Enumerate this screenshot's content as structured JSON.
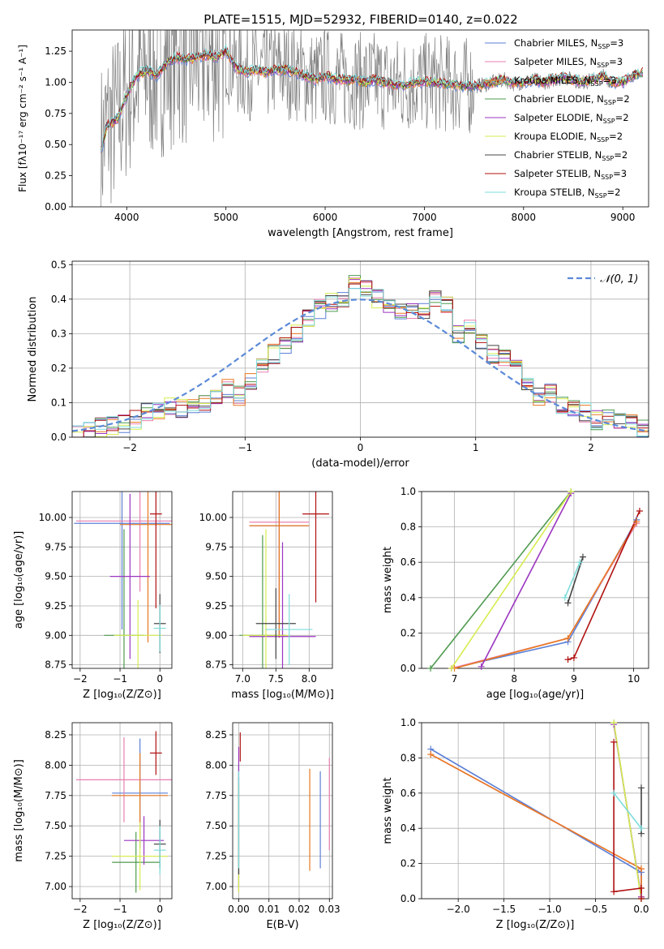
{
  "figure_title": "PLATE=1515, MJD=52932, FIBERID=0140, z=0.022",
  "colors": {
    "Chabrier MILES": "#5b7fd6",
    "Salpeter MILES": "#e87fb0",
    "Kroupa MILES": "#e87820",
    "Chabrier ELODIE": "#4f9a4f",
    "Salpeter ELODIE": "#9c35c0",
    "Kroupa ELODIE": "#d7ec50",
    "Chabrier STELIB": "#444444",
    "Salpeter STELIB": "#b01010",
    "Kroupa STELIB": "#7fdcdc",
    "data": "#808080",
    "normal": "#5b8ad8"
  },
  "chart_data": [
    {
      "id": "spectrum",
      "type": "line",
      "title": "PLATE=1515, MJD=52932, FIBERID=0140, z=0.022",
      "xlabel": "wavelength [Angstrom, rest frame]",
      "ylabel": "Flux [fλ10⁻¹⁷ erg cm⁻² s⁻¹ A⁻¹]",
      "xlim": [
        3450,
        9260
      ],
      "ylim": [
        0,
        1.42
      ],
      "xticks": [
        4000,
        5000,
        6000,
        7000,
        8000,
        9000
      ],
      "yticks": [
        0.0,
        0.25,
        0.5,
        0.75,
        1.0,
        1.25
      ],
      "legend": [
        "Chabrier MILES, N_SSP=3",
        "Salpeter MILES, N_SSP=3",
        "Kroupa MILES, N_SSP=3",
        "Chabrier ELODIE, N_SSP=2",
        "Salpeter ELODIE, N_SSP=2",
        "Kroupa ELODIE, N_SSP=2",
        "Chabrier STELIB, N_SSP=2",
        "Salpeter STELIB, N_SSP=3",
        "Kroupa STELIB, N_SSP=2"
      ],
      "legend_placement": "upper right",
      "model_continuum": {
        "x": [
          3740,
          3800,
          3900,
          4000,
          4100,
          4200,
          4300,
          4400,
          4500,
          4600,
          4700,
          4800,
          4900,
          5000,
          5100,
          5200,
          5300,
          5400,
          5500,
          5600,
          5700,
          5800,
          5900,
          6000,
          6100,
          6200,
          6300,
          6400,
          6500,
          6600,
          6700,
          6800,
          6900,
          7000,
          7100,
          7200,
          7300,
          7400,
          7500,
          7600,
          7700,
          7800,
          7900,
          8000,
          8100,
          8200,
          8300,
          8400,
          8500,
          8600,
          8700,
          8800,
          8900,
          9000,
          9100,
          9200
        ],
        "y": [
          0.45,
          0.65,
          0.7,
          0.9,
          1.05,
          1.1,
          1.05,
          1.15,
          1.2,
          1.18,
          1.2,
          1.22,
          1.2,
          1.25,
          1.12,
          1.08,
          1.1,
          1.08,
          1.1,
          1.1,
          1.08,
          1.05,
          1.02,
          1.05,
          1.03,
          1.02,
          1.02,
          1.0,
          1.02,
          1.0,
          0.98,
          0.98,
          1.0,
          1.0,
          1.0,
          0.99,
          0.98,
          0.97,
          0.97,
          0.98,
          1.0,
          1.02,
          0.99,
          1.0,
          1.02,
          1.0,
          1.02,
          1.04,
          1.02,
          1.0,
          1.02,
          1.05,
          1.0,
          1.0,
          1.05,
          1.08
        ]
      }
    },
    {
      "id": "residuals",
      "type": "histogram",
      "xlabel": "(data-model)/error",
      "ylabel": "Normed distribution",
      "xlim": [
        -2.5,
        2.5
      ],
      "ylim": [
        0,
        0.51
      ],
      "xticks": [
        -2,
        -1,
        0,
        1,
        2
      ],
      "yticks": [
        0.0,
        0.1,
        0.2,
        0.3,
        0.4,
        0.5
      ],
      "legend": [
        "𝒩(0, 1)"
      ],
      "legend_placement": "upper right",
      "bin_width": 0.1,
      "bin_start": -2.5,
      "reference_density": [
        0.02,
        0.02,
        0.03,
        0.03,
        0.04,
        0.05,
        0.07,
        0.08,
        0.09,
        0.08,
        0.09,
        0.1,
        0.12,
        0.14,
        0.12,
        0.16,
        0.2,
        0.24,
        0.26,
        0.3,
        0.34,
        0.37,
        0.39,
        0.4,
        0.45,
        0.43,
        0.4,
        0.38,
        0.37,
        0.36,
        0.37,
        0.4,
        0.38,
        0.3,
        0.31,
        0.28,
        0.24,
        0.23,
        0.2,
        0.15,
        0.12,
        0.13,
        0.09,
        0.09,
        0.07,
        0.05,
        0.05,
        0.04,
        0.04,
        0.03
      ]
    },
    {
      "id": "age_vs_Z",
      "type": "errorbar",
      "xlabel": "Z [log₁₀(Z/Z⊙)]",
      "ylabel": "age  [log₁₀(age/yr)]",
      "xlim": [
        -2.2,
        0.3
      ],
      "ylim": [
        8.72,
        10.22
      ],
      "xticks": [
        -2,
        -1,
        0
      ],
      "yticks": [
        8.75,
        9.0,
        9.25,
        9.5,
        9.75,
        10.0
      ],
      "points": [
        {
          "model": "Chabrier MILES",
          "x": -0.95,
          "y": 9.95,
          "xerr": 1.2,
          "yerr": 0.9
        },
        {
          "model": "Salpeter MILES",
          "x": -0.5,
          "y": 9.97,
          "xerr": 1.6,
          "yerr": 0.6
        },
        {
          "model": "Kroupa MILES",
          "x": -0.3,
          "y": 9.94,
          "xerr": 0.7,
          "yerr": 1.0
        },
        {
          "model": "Chabrier ELODIE",
          "x": -0.9,
          "y": 9.0,
          "xerr": 0.5,
          "yerr": 0.9
        },
        {
          "model": "Salpeter ELODIE",
          "x": -0.75,
          "y": 9.5,
          "xerr": 0.5,
          "yerr": 0.7
        },
        {
          "model": "Kroupa ELODIE",
          "x": -0.55,
          "y": 9.0,
          "xerr": 0.6,
          "yerr": 0.3
        },
        {
          "model": "Chabrier STELIB",
          "x": 0.0,
          "y": 9.1,
          "xerr": 0.15,
          "yerr": 0.25
        },
        {
          "model": "Salpeter STELIB",
          "x": -0.1,
          "y": 10.03,
          "xerr": 0.15,
          "yerr": 0.8
        },
        {
          "model": "Kroupa STELIB",
          "x": 0.0,
          "y": 9.06,
          "xerr": 0.15,
          "yerr": 0.2
        }
      ]
    },
    {
      "id": "age_vs_mass",
      "type": "errorbar",
      "xlabel": "mass [log₁₀(M/M⊙)]",
      "ylabel": "",
      "xlim": [
        6.85,
        8.35
      ],
      "ylim": [
        8.72,
        10.22
      ],
      "xticks": [
        7.0,
        7.5,
        8.0
      ],
      "yticks": [
        8.75,
        9.0,
        9.25,
        9.5,
        9.75,
        10.0
      ],
      "points": [
        {
          "model": "Chabrier MILES",
          "x": 7.55,
          "y": 9.93,
          "xerr": 0.45,
          "yerr": 0.95
        },
        {
          "model": "Salpeter MILES",
          "x": 7.55,
          "y": 9.96,
          "xerr": 0.45,
          "yerr": 0.95
        },
        {
          "model": "Kroupa MILES",
          "x": 7.55,
          "y": 9.93,
          "xerr": 0.45,
          "yerr": 0.95
        },
        {
          "model": "Chabrier ELODIE",
          "x": 7.3,
          "y": 9.0,
          "xerr": 0.35,
          "yerr": 0.85
        },
        {
          "model": "Salpeter ELODIE",
          "x": 7.6,
          "y": 8.99,
          "xerr": 0.5,
          "yerr": 0.8
        },
        {
          "model": "Kroupa ELODIE",
          "x": 7.35,
          "y": 9.0,
          "xerr": 0.35,
          "yerr": 0.9
        },
        {
          "model": "Chabrier STELIB",
          "x": 7.5,
          "y": 9.1,
          "xerr": 0.3,
          "yerr": 0.3
        },
        {
          "model": "Salpeter STELIB",
          "x": 8.1,
          "y": 10.03,
          "xerr": 0.2,
          "yerr": 0.75
        },
        {
          "model": "Kroupa STELIB",
          "x": 7.7,
          "y": 9.05,
          "xerr": 0.35,
          "yerr": 0.3
        }
      ]
    },
    {
      "id": "mass_weight_vs_age",
      "type": "line",
      "xlabel": "age  [log₁₀(age/yr)]",
      "ylabel": "mass weight",
      "xlim": [
        6.45,
        10.25
      ],
      "ylim": [
        0,
        1.0
      ],
      "xticks": [
        7,
        8,
        9,
        10
      ],
      "yticks": [
        0.0,
        0.2,
        0.4,
        0.6,
        0.8,
        1.0
      ],
      "series": [
        {
          "name": "Chabrier MILES",
          "x": [
            6.95,
            8.9,
            10.05
          ],
          "y": [
            0.0,
            0.15,
            0.84
          ]
        },
        {
          "name": "Salpeter MILES",
          "x": [
            6.95,
            8.9,
            10.05
          ],
          "y": [
            0.0,
            0.17,
            0.82
          ]
        },
        {
          "name": "Kroupa MILES",
          "x": [
            7.0,
            8.9,
            10.05
          ],
          "y": [
            0.0,
            0.17,
            0.83
          ]
        },
        {
          "name": "Chabrier ELODIE",
          "x": [
            6.6,
            8.95
          ],
          "y": [
            0.0,
            1.0
          ]
        },
        {
          "name": "Salpeter ELODIE",
          "x": [
            7.45,
            8.95
          ],
          "y": [
            0.01,
            0.99
          ]
        },
        {
          "name": "Kroupa ELODIE",
          "x": [
            6.95,
            8.95
          ],
          "y": [
            0.0,
            1.0
          ]
        },
        {
          "name": "Chabrier STELIB",
          "x": [
            8.9,
            9.15
          ],
          "y": [
            0.37,
            0.63
          ]
        },
        {
          "name": "Salpeter STELIB",
          "x": [
            8.9,
            9.0,
            10.1
          ],
          "y": [
            0.05,
            0.06,
            0.89
          ]
        },
        {
          "name": "Kroupa STELIB",
          "x": [
            8.85,
            9.1
          ],
          "y": [
            0.4,
            0.6
          ]
        }
      ]
    },
    {
      "id": "mass_vs_Z",
      "type": "errorbar",
      "xlabel": "Z [log₁₀(Z/Z⊙)]",
      "ylabel": "mass [log₁₀(M/M⊙)]",
      "xlim": [
        -2.2,
        0.3
      ],
      "ylim": [
        6.9,
        8.35
      ],
      "xticks": [
        -2,
        -1,
        0
      ],
      "yticks": [
        7.0,
        7.25,
        7.5,
        7.75,
        8.0,
        8.25
      ],
      "points": [
        {
          "model": "Chabrier MILES",
          "x": -0.5,
          "y": 7.77,
          "xerr": 0.7,
          "yerr": 0.45
        },
        {
          "model": "Salpeter MILES",
          "x": -0.9,
          "y": 7.88,
          "xerr": 1.2,
          "yerr": 0.35
        },
        {
          "model": "Kroupa MILES",
          "x": -0.5,
          "y": 7.75,
          "xerr": 0.7,
          "yerr": 0.35
        },
        {
          "model": "Chabrier ELODIE",
          "x": -0.6,
          "y": 7.2,
          "xerr": 0.6,
          "yerr": 0.25
        },
        {
          "model": "Salpeter ELODIE",
          "x": -0.4,
          "y": 7.38,
          "xerr": 0.5,
          "yerr": 0.2
        },
        {
          "model": "Kroupa ELODIE",
          "x": -0.5,
          "y": 7.25,
          "xerr": 0.7,
          "yerr": 0.28
        },
        {
          "model": "Chabrier STELIB",
          "x": 0.0,
          "y": 7.35,
          "xerr": 0.15,
          "yerr": 0.2
        },
        {
          "model": "Salpeter STELIB",
          "x": -0.1,
          "y": 8.1,
          "xerr": 0.15,
          "yerr": 0.18
        },
        {
          "model": "Kroupa STELIB",
          "x": 0.0,
          "y": 7.3,
          "xerr": 0.15,
          "yerr": 0.2
        }
      ]
    },
    {
      "id": "mass_vs_ebv",
      "type": "errorbar",
      "xlabel": "E(B-V)",
      "ylabel": "",
      "xlim": [
        -0.002,
        0.031
      ],
      "ylim": [
        6.9,
        8.35
      ],
      "xticks": [
        0.0,
        0.01,
        0.02,
        0.03
      ],
      "yticks": [
        7.0,
        7.25,
        7.5,
        7.75,
        8.0,
        8.25
      ],
      "points": [
        {
          "model": "Chabrier MILES",
          "x": 0.027,
          "y": 7.55,
          "xerr": 0,
          "yerr": 0.4
        },
        {
          "model": "Salpeter MILES",
          "x": 0.03,
          "y": 7.68,
          "xerr": 0,
          "yerr": 0.38
        },
        {
          "model": "Kroupa MILES",
          "x": 0.0235,
          "y": 7.55,
          "xerr": 0,
          "yerr": 0.42
        },
        {
          "model": "Chabrier ELODIE",
          "x": 0.0,
          "y": 7.5,
          "xerr": 0,
          "yerr": 0.5
        },
        {
          "model": "Salpeter ELODIE",
          "x": 0.0,
          "y": 7.55,
          "xerr": 0,
          "yerr": 0.6
        },
        {
          "model": "Kroupa ELODIE",
          "x": 0.0,
          "y": 7.4,
          "xerr": 0,
          "yerr": 0.45
        },
        {
          "model": "Chabrier STELIB",
          "x": 0.0,
          "y": 7.5,
          "xerr": 0,
          "yerr": 0.4
        },
        {
          "model": "Salpeter STELIB",
          "x": 0.0005,
          "y": 8.15,
          "xerr": 0,
          "yerr": 0.12
        },
        {
          "model": "Kroupa STELIB",
          "x": 0.0,
          "y": 7.55,
          "xerr": 0,
          "yerr": 0.4
        }
      ]
    },
    {
      "id": "mass_weight_vs_Z",
      "type": "line",
      "xlabel": "Z [log₁₀(Z/Z⊙)]",
      "ylabel": "mass weight",
      "xlim": [
        -2.4,
        0.08
      ],
      "ylim": [
        0,
        1.0
      ],
      "xticks": [
        -2.0,
        -1.5,
        -1.0,
        -0.5,
        0.0
      ],
      "yticks": [
        0.0,
        0.2,
        0.4,
        0.6,
        0.8,
        1.0
      ],
      "series": [
        {
          "name": "Chabrier MILES",
          "x": [
            -2.3,
            0.0,
            0.0
          ],
          "y": [
            0.85,
            0.15,
            0.0
          ]
        },
        {
          "name": "Salpeter MILES",
          "x": [
            -2.3,
            0.0,
            0.0
          ],
          "y": [
            0.82,
            0.17,
            0.01
          ]
        },
        {
          "name": "Kroupa MILES",
          "x": [
            -2.3,
            0.0,
            0.0
          ],
          "y": [
            0.82,
            0.17,
            0.01
          ]
        },
        {
          "name": "Chabrier ELODIE",
          "x": [
            -0.3,
            0.0
          ],
          "y": [
            1.0,
            0.0
          ]
        },
        {
          "name": "Salpeter ELODIE",
          "x": [
            -0.3,
            0.0
          ],
          "y": [
            0.99,
            0.01
          ]
        },
        {
          "name": "Kroupa ELODIE",
          "x": [
            -0.3,
            0.0
          ],
          "y": [
            1.0,
            0.0
          ]
        },
        {
          "name": "Chabrier STELIB",
          "x": [
            0.0,
            0.0
          ],
          "y": [
            0.37,
            0.63
          ]
        },
        {
          "name": "Salpeter STELIB",
          "x": [
            -0.3,
            -0.3,
            0.0,
            0.0
          ],
          "y": [
            0.89,
            0.04,
            0.06,
            0.0
          ]
        },
        {
          "name": "Kroupa STELIB",
          "x": [
            -0.3,
            0.0
          ],
          "y": [
            0.6,
            0.4
          ]
        }
      ]
    }
  ]
}
